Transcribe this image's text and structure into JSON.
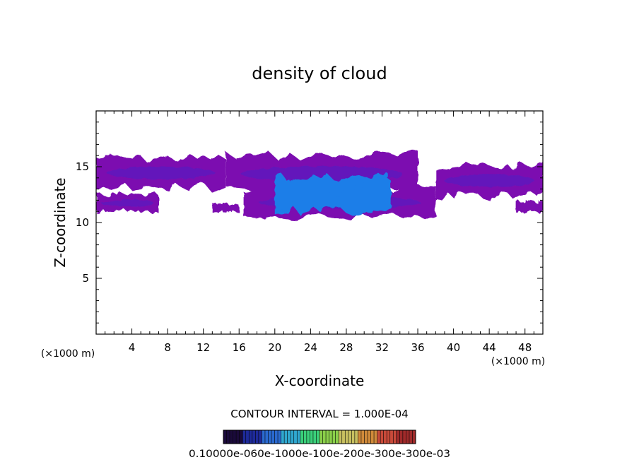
{
  "chart_data": {
    "type": "heatmap",
    "title": "density of cloud",
    "xlabel": "X-coordinate",
    "ylabel": "Z-coordinate",
    "x_unit_left": "(×1000 m)",
    "x_unit_right": "(×1000 m)",
    "xlim": [
      0,
      50
    ],
    "ylim": [
      0,
      20
    ],
    "xticks": [
      4,
      8,
      12,
      16,
      20,
      24,
      28,
      32,
      36,
      40,
      44,
      48
    ],
    "yticks": [
      5,
      10,
      15
    ],
    "contour_interval_label": "CONTOUR INTERVAL = 1.000E-04",
    "colorbar_label": "0.10000e-060e-1000e-100e-200e-300e-300e-03",
    "colorbar_colors": [
      "#1a0a3a",
      "#1e2a9a",
      "#2a6ad0",
      "#30a8d0",
      "#3ad07a",
      "#8ad04a",
      "#c8c060",
      "#d08a3a",
      "#c84a3a",
      "#a02a2a"
    ],
    "cloud_color": "#7c0bb0",
    "cloud_mid_color": "#5a20c0",
    "cloud_core_color": "#1f7ee8",
    "cloud_regions": [
      {
        "name": "upper band",
        "x": [
          0,
          14.5
        ],
        "z": [
          12.7,
          16.2
        ],
        "color": "#7c0bb0"
      },
      {
        "name": "upper band",
        "x": [
          14.5,
          36
        ],
        "z": [
          12.2,
          16.5
        ],
        "color": "#7c0bb0"
      },
      {
        "name": "upper band",
        "x": [
          38,
          50
        ],
        "z": [
          12.0,
          15.5
        ],
        "color": "#7c0bb0"
      },
      {
        "name": "lower layer",
        "x": [
          0,
          7
        ],
        "z": [
          10.8,
          12.7
        ],
        "color": "#7c0bb0"
      },
      {
        "name": "lower layer",
        "x": [
          13,
          16
        ],
        "z": [
          10.8,
          11.8
        ],
        "color": "#7c0bb0"
      },
      {
        "name": "lower layer",
        "x": [
          16.5,
          38
        ],
        "z": [
          10.1,
          13.5
        ],
        "color": "#7c0bb0"
      },
      {
        "name": "lower layer",
        "x": [
          47,
          50
        ],
        "z": [
          10.8,
          12.0
        ],
        "color": "#7c0bb0"
      },
      {
        "name": "core",
        "x": [
          20,
          33
        ],
        "z": [
          10.5,
          14.6
        ],
        "color": "#1f7ee8"
      }
    ]
  }
}
